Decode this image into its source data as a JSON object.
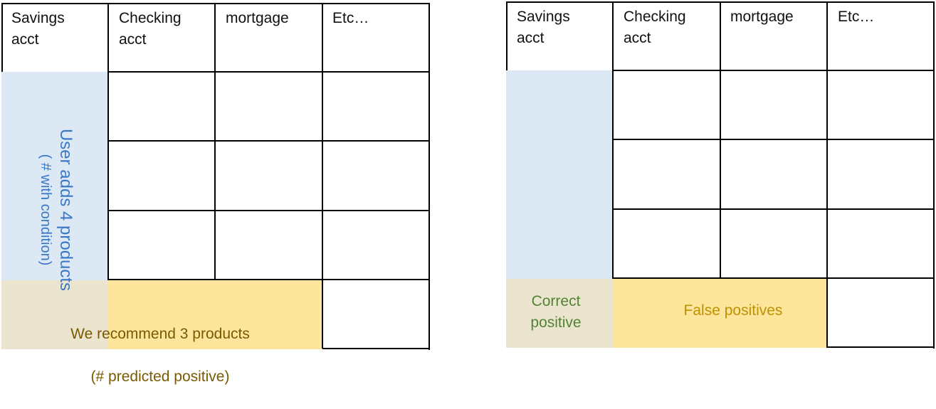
{
  "colors": {
    "user_adds_blue": "#3a78c6",
    "blue_fill": "#dde8f5",
    "tan_fill": "#ebe5d0",
    "yellow_fill": "#fde69c",
    "recommend_text": "#7a5a00",
    "correct_text": "#548235",
    "false_text": "#bf9000"
  },
  "left_grid": {
    "headers": [
      "Savings\nacct",
      "Checking\nacct",
      "mortgage",
      "Etc…"
    ],
    "user_adds_label": "User adds 4 products",
    "user_adds_sub": "( # with condition)",
    "recommend_line1": "We recommend 3 products",
    "recommend_line2": "(# predicted positive)"
  },
  "right_grid": {
    "headers": [
      "Savings\nacct",
      "Checking\nacct",
      "mortgage",
      "Etc…"
    ],
    "correct_label": "Correct\npositive",
    "false_label": "False positives"
  }
}
